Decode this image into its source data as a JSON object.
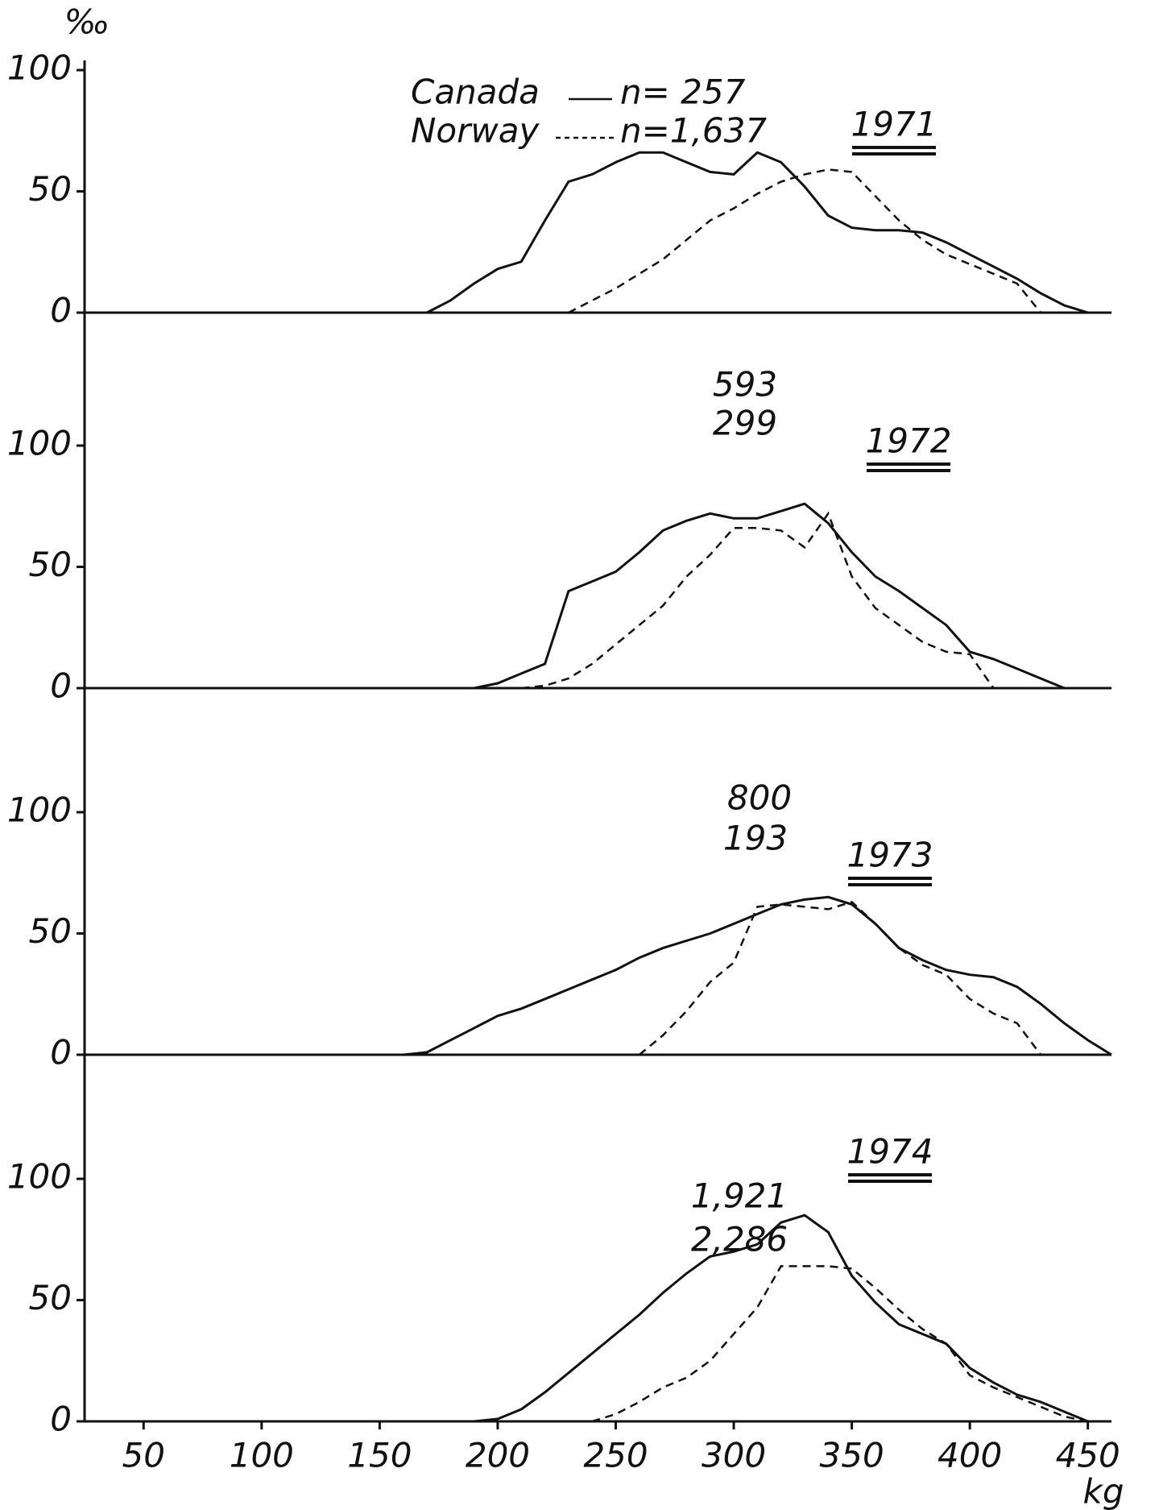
{
  "chart_data": [
    {
      "type": "line",
      "title": "1971",
      "y_label": "‰",
      "x": [
        160,
        170,
        180,
        190,
        200,
        210,
        220,
        230,
        240,
        250,
        260,
        270,
        280,
        290,
        300,
        310,
        320,
        330,
        340,
        350,
        360,
        370,
        380,
        390,
        400,
        410,
        420,
        430,
        440,
        450,
        460
      ],
      "xlim": [
        25,
        460
      ],
      "ylim": [
        0,
        100
      ],
      "yticks": [
        0,
        50,
        100
      ],
      "legend": true,
      "series": [
        {
          "name": "Canada",
          "n": "n= 257",
          "color": "#111111",
          "dash": false,
          "values": [
            null,
            0,
            5,
            12,
            18,
            21,
            38,
            54,
            57,
            62,
            66,
            66,
            62,
            58,
            57,
            66,
            62,
            52,
            40,
            35,
            34,
            34,
            33,
            29,
            24,
            19,
            14,
            8,
            3,
            0,
            null
          ]
        },
        {
          "name": "Norway",
          "n": "n=1,637",
          "color": "#111111",
          "dash": true,
          "values": [
            null,
            null,
            null,
            null,
            null,
            null,
            null,
            0,
            5,
            10,
            16,
            22,
            30,
            38,
            43,
            49,
            54,
            57,
            59,
            58,
            48,
            38,
            30,
            24,
            20,
            16,
            12,
            0,
            null,
            null,
            null
          ]
        }
      ]
    },
    {
      "type": "line",
      "title": "1972",
      "x": [
        160,
        170,
        180,
        190,
        200,
        210,
        220,
        230,
        240,
        250,
        260,
        270,
        280,
        290,
        300,
        310,
        320,
        330,
        340,
        350,
        360,
        370,
        380,
        390,
        400,
        410,
        420,
        430,
        440,
        450,
        460
      ],
      "xlim": [
        25,
        460
      ],
      "ylim": [
        0,
        100
      ],
      "yticks": [
        0,
        50,
        100
      ],
      "series": [
        {
          "n": "593",
          "color": "#111111",
          "dash": false,
          "values": [
            null,
            null,
            null,
            0,
            2,
            6,
            10,
            40,
            44,
            48,
            56,
            65,
            69,
            72,
            70,
            70,
            73,
            76,
            68,
            56,
            46,
            40,
            33,
            26,
            15,
            12,
            8,
            4,
            0,
            0,
            null
          ]
        },
        {
          "n": "299",
          "color": "#111111",
          "dash": true,
          "values": [
            null,
            null,
            null,
            null,
            null,
            0,
            1,
            4,
            10,
            18,
            26,
            34,
            46,
            55,
            66,
            66,
            65,
            58,
            72,
            46,
            33,
            26,
            19,
            15,
            14,
            0,
            null,
            null,
            null,
            null,
            null
          ]
        }
      ]
    },
    {
      "type": "line",
      "title": "1973",
      "x": [
        160,
        170,
        180,
        190,
        200,
        210,
        220,
        230,
        240,
        250,
        260,
        270,
        280,
        290,
        300,
        310,
        320,
        330,
        340,
        350,
        360,
        370,
        380,
        390,
        400,
        410,
        420,
        430,
        440,
        450,
        460
      ],
      "xlim": [
        25,
        460
      ],
      "ylim": [
        0,
        100
      ],
      "yticks": [
        0,
        50,
        100
      ],
      "series": [
        {
          "n": "800",
          "color": "#111111",
          "dash": false,
          "values": [
            0,
            1,
            6,
            11,
            16,
            19,
            23,
            27,
            31,
            35,
            40,
            44,
            47,
            50,
            54,
            58,
            62,
            64,
            65,
            62,
            54,
            44,
            39,
            35,
            33,
            32,
            28,
            21,
            13,
            6,
            0
          ]
        },
        {
          "n": "193",
          "color": "#111111",
          "dash": true,
          "values": [
            null,
            null,
            null,
            null,
            null,
            null,
            null,
            null,
            null,
            null,
            0,
            8,
            18,
            30,
            38,
            61,
            62,
            61,
            60,
            63,
            54,
            44,
            37,
            33,
            23,
            17,
            13,
            0,
            null,
            null,
            null
          ]
        }
      ]
    },
    {
      "type": "line",
      "title": "1974",
      "x_label": "kg",
      "x": [
        160,
        170,
        180,
        190,
        200,
        210,
        220,
        230,
        240,
        250,
        260,
        270,
        280,
        290,
        300,
        310,
        320,
        330,
        340,
        350,
        360,
        370,
        380,
        390,
        400,
        410,
        420,
        430,
        440,
        450,
        460
      ],
      "xlim": [
        25,
        460
      ],
      "ylim": [
        0,
        100
      ],
      "yticks": [
        0,
        50,
        100
      ],
      "xticks": [
        50,
        100,
        150,
        200,
        250,
        300,
        350,
        400,
        450
      ],
      "series": [
        {
          "n": "1,921",
          "color": "#111111",
          "dash": false,
          "values": [
            null,
            null,
            null,
            0,
            1,
            5,
            12,
            20,
            28,
            36,
            44,
            53,
            61,
            68,
            70,
            73,
            82,
            85,
            78,
            60,
            49,
            40,
            36,
            32,
            22,
            16,
            11,
            8,
            4,
            0,
            null
          ]
        },
        {
          "n": "2,286",
          "color": "#111111",
          "dash": true,
          "values": [
            null,
            null,
            null,
            null,
            null,
            null,
            null,
            null,
            0,
            3,
            8,
            14,
            18,
            25,
            36,
            47,
            64,
            64,
            64,
            63,
            55,
            46,
            38,
            32,
            19,
            14,
            10,
            6,
            2,
            0,
            null
          ]
        }
      ]
    }
  ]
}
